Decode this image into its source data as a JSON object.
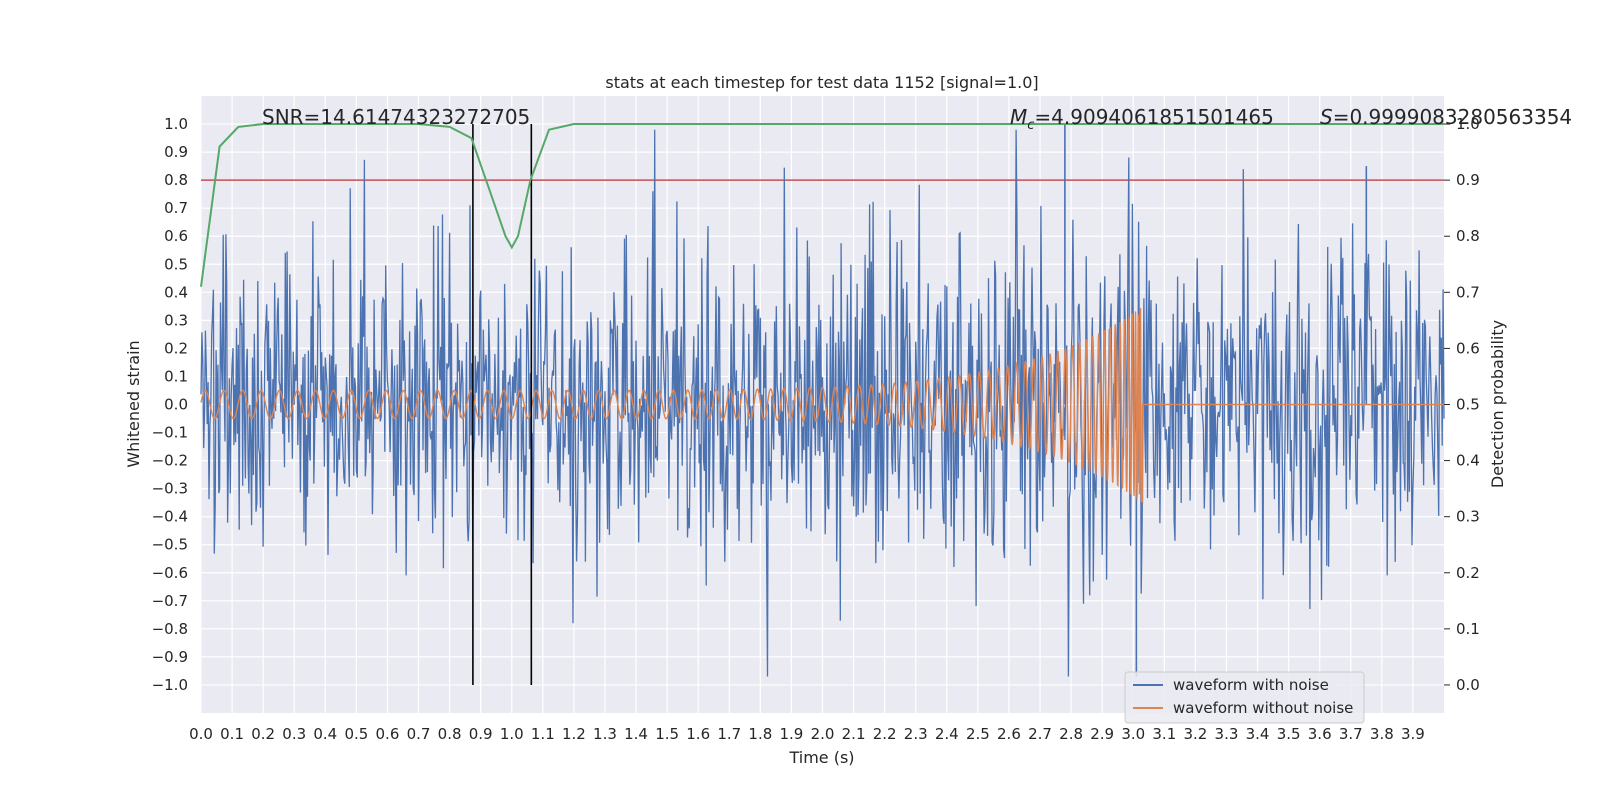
{
  "chart_data": {
    "type": "line",
    "title": "stats at each timestep for test data 1152 [signal=1.0]",
    "xlabel": "Time (s)",
    "ylabel": "Whitened strain",
    "y2label": "Detection probability",
    "xlim": [
      0.0,
      4.0
    ],
    "ylim": [
      -1.1,
      1.1
    ],
    "y2lim": [
      -0.05,
      1.05
    ],
    "x_ticks": [
      "0.0",
      "0.1",
      "0.2",
      "0.3",
      "0.4",
      "0.5",
      "0.6",
      "0.7",
      "0.8",
      "0.9",
      "1.0",
      "1.1",
      "1.2",
      "1.3",
      "1.4",
      "1.5",
      "1.6",
      "1.7",
      "1.8",
      "1.9",
      "2.0",
      "2.1",
      "2.2",
      "2.3",
      "2.4",
      "2.5",
      "2.6",
      "2.7",
      "2.8",
      "2.9",
      "3.0",
      "3.1",
      "3.2",
      "3.3",
      "3.4",
      "3.5",
      "3.6",
      "3.7",
      "3.8",
      "3.9"
    ],
    "y_ticks": [
      "1.0",
      "0.9",
      "0.8",
      "0.7",
      "0.6",
      "0.5",
      "0.4",
      "0.3",
      "0.2",
      "0.1",
      "0.0",
      "−0.1",
      "−0.2",
      "−0.3",
      "−0.4",
      "−0.5",
      "−0.6",
      "−0.7",
      "−0.8",
      "−0.9",
      "−1.0"
    ],
    "y2_ticks": [
      "1.0",
      "0.9",
      "0.8",
      "0.7",
      "0.6",
      "0.5",
      "0.4",
      "0.3",
      "0.2",
      "0.1",
      "0.0"
    ],
    "grid": true,
    "legend_position": "bottom-right",
    "annotations": {
      "snr": "SNR=14.61474323272705",
      "mc_symbol": "M",
      "mc_sub": "c",
      "mc_value": "=4.9094061851501465",
      "s_symbol": "S",
      "s_value": "=0.9999083280563354"
    },
    "series": [
      {
        "name": "waveform with noise",
        "color": "#4c72b0",
        "description": "noisy whitened strain, amplitude roughly within -0.9..1.0",
        "amplitude_range": [
          -0.97,
          1.0
        ]
      },
      {
        "name": "waveform without noise",
        "color": "#dd8452",
        "description": "chirp signal with growing amplitude ending near t=3.03",
        "amplitude_start": 0.05,
        "amplitude_peak": 0.35,
        "end_time": 3.03
      },
      {
        "name": "detection probability",
        "color": "#55a868",
        "axis": "right",
        "x": [
          0.0,
          0.06,
          0.12,
          0.2,
          0.3,
          0.5,
          0.7,
          0.8,
          0.87,
          0.93,
          0.98,
          1.0,
          1.02,
          1.06,
          1.12,
          1.2,
          1.5,
          2.0,
          3.0,
          4.0
        ],
        "y": [
          0.71,
          0.96,
          0.995,
          1.0,
          1.0,
          1.0,
          1.0,
          0.995,
          0.975,
          0.88,
          0.8,
          0.78,
          0.8,
          0.9,
          0.99,
          1.0,
          1.0,
          1.0,
          1.0,
          1.0
        ]
      }
    ],
    "threshold": {
      "axis": "right",
      "value": 0.9,
      "color": "#c44e52"
    },
    "vlines": [
      0.875,
      1.063
    ],
    "vline_range": [
      -1.0,
      1.0
    ],
    "colors": {
      "background": "#eaeaf2",
      "grid": "#ffffff",
      "vline": "#000000",
      "text": "#262626"
    }
  }
}
